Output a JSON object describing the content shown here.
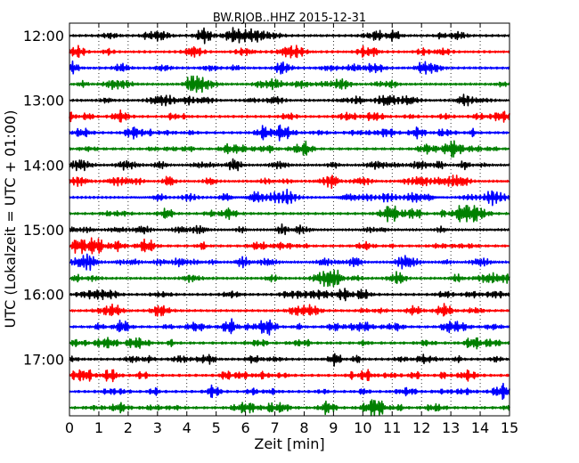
{
  "chart_data": {
    "type": "line",
    "subtype": "dayplot-seismogram",
    "title": "BW.RJOB..HHZ 2015-12-31",
    "xlabel": "Zeit  [min]",
    "ylabel": "UTC (Lokalzeit = UTC + 01:00)",
    "xlim": [
      0,
      15
    ],
    "x_ticks": [
      "0",
      "1",
      "2",
      "3",
      "4",
      "5",
      "6",
      "7",
      "8",
      "9",
      "10",
      "11",
      "12",
      "13",
      "14",
      "15"
    ],
    "y_tick_labels": [
      "12:00",
      "13:00",
      "14:00",
      "15:00",
      "16:00",
      "17:00"
    ],
    "interval_minutes": 15,
    "start_time": "12:00",
    "trace_count": 24,
    "color_cycle": [
      "#000000",
      "#ff0000",
      "#0000ff",
      "#008000"
    ],
    "grid": "vertical-dotted-per-minute",
    "notable_bursts": [
      {
        "trace_start": "12:45",
        "minute": 4.3
      },
      {
        "trace_start": "13:30",
        "minute": 7.2
      },
      {
        "trace_start": "13:45",
        "minute": 13.0
      },
      {
        "trace_start": "14:45",
        "minute": 13.5
      },
      {
        "trace_start": "15:45",
        "minute": 9.0
      },
      {
        "trace_start": "16:30",
        "minute": 1.8
      },
      {
        "trace_start": "16:30",
        "minute": 6.8
      },
      {
        "trace_start": "17:15",
        "minute": 1.4
      },
      {
        "trace_start": "17:45",
        "minute": 8.8
      }
    ]
  }
}
